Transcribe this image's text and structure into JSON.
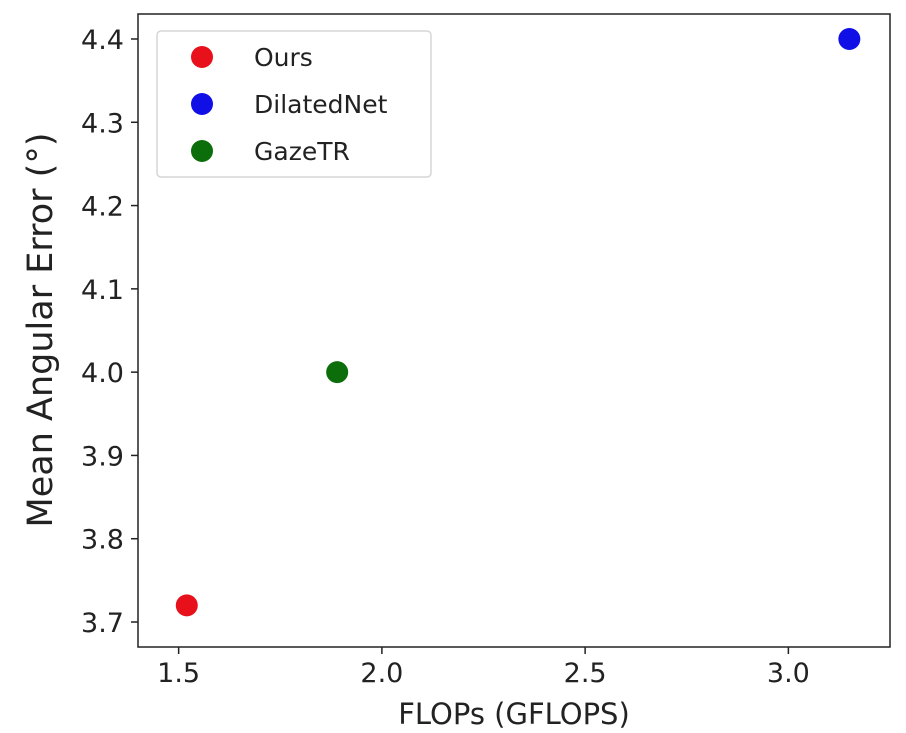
{
  "chart_data": {
    "type": "scatter",
    "xlabel": "FLOPs (GFLOPS)",
    "ylabel": "Mean Angular Error (°)",
    "xlim": [
      1.4,
      3.25
    ],
    "ylim": [
      3.67,
      4.43
    ],
    "xticks": [
      "1.5",
      "2.0",
      "2.5",
      "3.0"
    ],
    "yticks": [
      "3.7",
      "3.8",
      "3.9",
      "4.0",
      "4.1",
      "4.2",
      "4.3",
      "4.4"
    ],
    "grid": false,
    "legend_position": "top-left",
    "series": [
      {
        "name": "Ours",
        "color": "#e8101a",
        "x": [
          1.52
        ],
        "y": [
          3.72
        ]
      },
      {
        "name": "DilatedNet",
        "color": "#1010e6",
        "x": [
          3.15
        ],
        "y": [
          4.4
        ]
      },
      {
        "name": "GazeTR",
        "color": "#0b6e0b",
        "x": [
          1.89
        ],
        "y": [
          4.0
        ]
      }
    ]
  }
}
